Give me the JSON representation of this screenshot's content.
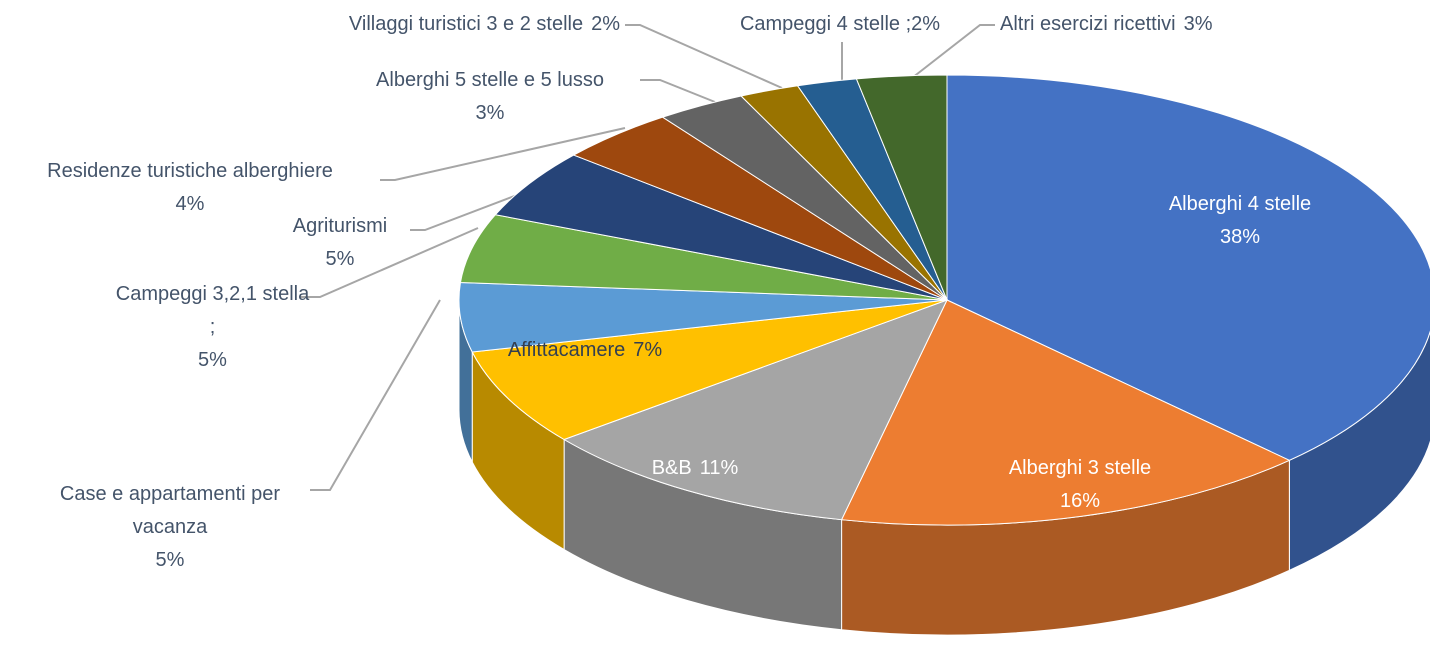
{
  "chart_data": {
    "type": "pie3d",
    "categories": [
      "Alberghi 4 stelle",
      "Alberghi 3 stelle",
      "B&B",
      "Affittacamere",
      "Case e appartamenti per vacanza",
      "Campeggi 3,2,1 stella ;",
      "Agriturismi",
      "Residenze turistiche alberghiere",
      "Alberghi 5 stelle e 5 lusso",
      "Villaggi turistici 3 e 2 stelle",
      "Campeggi 4 stelle ;",
      "Altri esercizi ricettivi"
    ],
    "values": [
      38,
      16,
      11,
      7,
      5,
      5,
      5,
      4,
      3,
      2,
      2,
      3
    ],
    "value_labels": [
      "38%",
      "16%",
      "11%",
      "7%",
      "5%",
      "5%",
      "5%",
      "4%",
      "3%",
      "2%",
      "2%",
      "3%"
    ],
    "colors": [
      "#4472c4",
      "#ed7d31",
      "#a5a5a5",
      "#ffc000",
      "#5b9bd5",
      "#70ad47",
      "#264478",
      "#9e480e",
      "#636363",
      "#997300",
      "#255e91",
      "#43682b"
    ]
  }
}
